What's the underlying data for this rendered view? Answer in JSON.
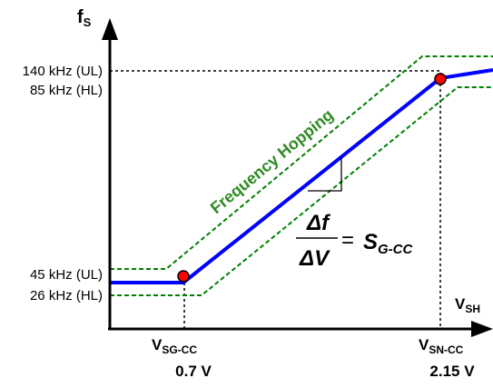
{
  "axes": {
    "y_symbol": "f",
    "y_subscript": "S",
    "x_symbol": "V",
    "x_subscript": "SH"
  },
  "y_labels": {
    "top_ul": "140 kHz (UL)",
    "top_hl": "85 kHz (HL)",
    "bottom_ul": "45 kHz (UL)",
    "bottom_hl": "26 kHz (HL)"
  },
  "x_labels": {
    "left_symbol": "V",
    "left_subscript": "SG-CC",
    "left_value": "0.7 V",
    "right_symbol": "V",
    "right_subscript": "SN-CC",
    "right_value": "2.15 V"
  },
  "band_label": "Frequency Hopping",
  "equation": {
    "numerator": "Δf",
    "denominator": "ΔV",
    "equals": "=",
    "rhs_symbol": "S",
    "rhs_subscript": "G-CC"
  },
  "colors": {
    "line": "#0000ff",
    "band": "#008000",
    "marker": "#ff0000",
    "label": "#2e8b22",
    "axis": "#000000"
  }
}
